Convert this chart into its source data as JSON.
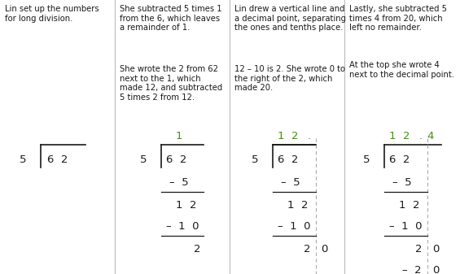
{
  "bg_color": "#ffffff",
  "text_color": "#1a1a1a",
  "green_color": "#4a8c1c",
  "divider_color": "#bbbbbb",
  "line_color": "#1a1a1a",
  "dot_line_color": "#aaaaaa",
  "panel_texts_top": [
    "Lin set up the numbers\nfor long division.",
    "She subtracted 5 times 1\nfrom the 6, which leaves\na remainder of 1.",
    "Lin drew a vertical line and\na decimal point, separating\nthe ones and tenths place.",
    "Lastly, she subtracted 5\ntimes 4 from 20, which\nleft no remainder."
  ],
  "panel_texts_mid": [
    "",
    "She wrote the 2 from 62\nnext to the 1, which\nmade 12, and subtracted\n5 times 2 from 12.",
    "12 – 10 is 2. She wrote 0 to\nthe right of the 2, which\nmade 20.",
    "At the top she wrote 4\nnext to the decimal point."
  ],
  "figsize": [
    5.65,
    3.37
  ],
  "dpi": 100,
  "text_fontsize": 7.2,
  "div_fontsize": 9.5
}
